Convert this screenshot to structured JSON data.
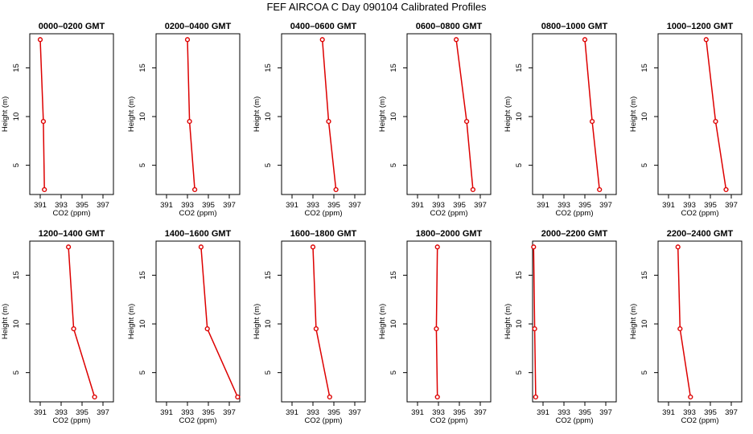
{
  "figure": {
    "title": "FEF AIRCOA C  Day 090104  Calibrated Profiles",
    "line_color": "#dd0000",
    "marker_color": "#dd0000"
  },
  "chart_data": [
    {
      "type": "line",
      "title": "0000–0200 GMT",
      "xlabel": "CO2 (ppm)",
      "ylabel": "Height (m)",
      "xlim": [
        390,
        398
      ],
      "ylim": [
        2,
        18.5
      ],
      "xticks": [
        391,
        393,
        395,
        397
      ],
      "yticks": [
        5,
        10,
        15
      ],
      "x": [
        391.4,
        391.3,
        391.0
      ],
      "y": [
        2.5,
        9.5,
        17.9
      ]
    },
    {
      "type": "line",
      "title": "0200–0400 GMT",
      "xlabel": "CO2 (ppm)",
      "ylabel": "Height (m)",
      "xlim": [
        390,
        398
      ],
      "ylim": [
        2,
        18.5
      ],
      "xticks": [
        391,
        393,
        395,
        397
      ],
      "yticks": [
        5,
        10,
        15
      ],
      "x": [
        393.7,
        393.2,
        393.0
      ],
      "y": [
        2.5,
        9.5,
        17.9
      ]
    },
    {
      "type": "line",
      "title": "0400–0600 GMT",
      "xlabel": "CO2 (ppm)",
      "ylabel": "Height (m)",
      "xlim": [
        390,
        398
      ],
      "ylim": [
        2,
        18.5
      ],
      "xticks": [
        391,
        393,
        395,
        397
      ],
      "yticks": [
        5,
        10,
        15
      ],
      "x": [
        395.2,
        394.5,
        393.9
      ],
      "y": [
        2.5,
        9.5,
        17.9
      ]
    },
    {
      "type": "line",
      "title": "0600–0800 GMT",
      "xlabel": "CO2 (ppm)",
      "ylabel": "Height (m)",
      "xlim": [
        390,
        398
      ],
      "ylim": [
        2,
        18.5
      ],
      "xticks": [
        391,
        393,
        395,
        397
      ],
      "yticks": [
        5,
        10,
        15
      ],
      "x": [
        396.3,
        395.7,
        394.7
      ],
      "y": [
        2.5,
        9.5,
        17.9
      ]
    },
    {
      "type": "line",
      "title": "0800–1000 GMT",
      "xlabel": "CO2 (ppm)",
      "ylabel": "Height (m)",
      "xlim": [
        390,
        398
      ],
      "ylim": [
        2,
        18.5
      ],
      "xticks": [
        391,
        393,
        395,
        397
      ],
      "yticks": [
        5,
        10,
        15
      ],
      "x": [
        396.4,
        395.7,
        395.0
      ],
      "y": [
        2.5,
        9.5,
        17.9
      ]
    },
    {
      "type": "line",
      "title": "1000–1200 GMT",
      "xlabel": "CO2 (ppm)",
      "ylabel": "Height (m)",
      "xlim": [
        390,
        398
      ],
      "ylim": [
        2,
        18.5
      ],
      "xticks": [
        391,
        393,
        395,
        397
      ],
      "yticks": [
        5,
        10,
        15
      ],
      "x": [
        396.5,
        395.5,
        394.6
      ],
      "y": [
        2.5,
        9.5,
        17.9
      ]
    },
    {
      "type": "line",
      "title": "1200–1400 GMT",
      "xlabel": "CO2 (ppm)",
      "ylabel": "Height (m)",
      "xlim": [
        390,
        398
      ],
      "ylim": [
        2,
        18.5
      ],
      "xticks": [
        391,
        393,
        395,
        397
      ],
      "yticks": [
        5,
        10,
        15
      ],
      "x": [
        396.2,
        394.2,
        393.7
      ],
      "y": [
        2.5,
        9.5,
        17.9
      ]
    },
    {
      "type": "line",
      "title": "1400–1600 GMT",
      "xlabel": "CO2 (ppm)",
      "ylabel": "Height (m)",
      "xlim": [
        390,
        398
      ],
      "ylim": [
        2,
        18.5
      ],
      "xticks": [
        391,
        393,
        395,
        397
      ],
      "yticks": [
        5,
        10,
        15
      ],
      "x": [
        397.8,
        394.9,
        394.3
      ],
      "y": [
        2.5,
        9.5,
        17.9
      ]
    },
    {
      "type": "line",
      "title": "1600–1800 GMT",
      "xlabel": "CO2 (ppm)",
      "ylabel": "Height (m)",
      "xlim": [
        390,
        398
      ],
      "ylim": [
        2,
        18.5
      ],
      "xticks": [
        391,
        393,
        395,
        397
      ],
      "yticks": [
        5,
        10,
        15
      ],
      "x": [
        394.6,
        393.3,
        393.0
      ],
      "y": [
        2.5,
        9.5,
        17.9
      ]
    },
    {
      "type": "line",
      "title": "1800–2000 GMT",
      "xlabel": "CO2 (ppm)",
      "ylabel": "Height (m)",
      "xlim": [
        390,
        398
      ],
      "ylim": [
        2,
        18.5
      ],
      "xticks": [
        391,
        393,
        395,
        397
      ],
      "yticks": [
        5,
        10,
        15
      ],
      "x": [
        392.9,
        392.8,
        392.9
      ],
      "y": [
        2.5,
        9.5,
        17.9
      ]
    },
    {
      "type": "line",
      "title": "2000–2200 GMT",
      "xlabel": "CO2 (ppm)",
      "ylabel": "Height (m)",
      "xlim": [
        390,
        398
      ],
      "ylim": [
        2,
        18.5
      ],
      "xticks": [
        391,
        393,
        395,
        397
      ],
      "yticks": [
        5,
        10,
        15
      ],
      "x": [
        390.3,
        390.2,
        390.1
      ],
      "y": [
        2.5,
        9.5,
        17.9
      ]
    },
    {
      "type": "line",
      "title": "2200–2400 GMT",
      "xlabel": "CO2 (ppm)",
      "ylabel": "Height (m)",
      "xlim": [
        390,
        398
      ],
      "ylim": [
        2,
        18.5
      ],
      "xticks": [
        391,
        393,
        395,
        397
      ],
      "yticks": [
        5,
        10,
        15
      ],
      "x": [
        393.1,
        392.1,
        391.9
      ],
      "y": [
        2.5,
        9.5,
        17.9
      ]
    }
  ]
}
